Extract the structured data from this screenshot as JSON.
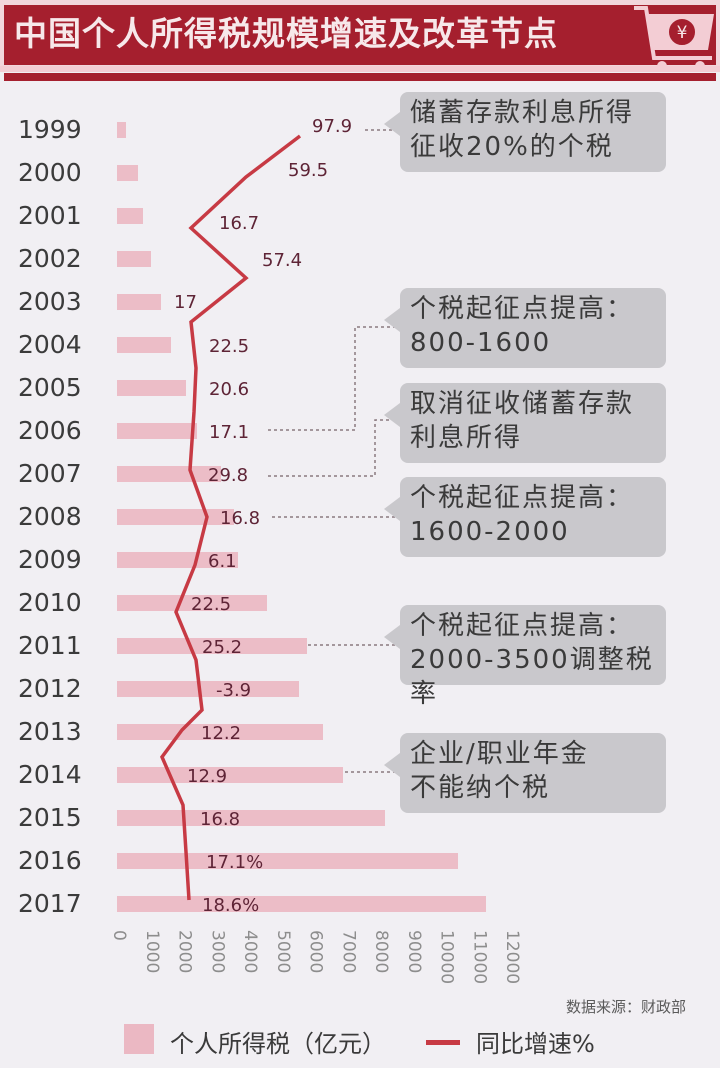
{
  "header": {
    "title": "中国个人所得税规模增速及改革节点",
    "icon": "shopping-cart-yuan-icon",
    "colors": {
      "band": "#a51f2e",
      "title_text": "#f7e8ea"
    }
  },
  "chart_data": {
    "type": "bar",
    "orientation": "horizontal",
    "title": "中国个人所得税规模增速及改革节点",
    "categories": [
      "1999",
      "2000",
      "2001",
      "2002",
      "2003",
      "2004",
      "2005",
      "2006",
      "2007",
      "2008",
      "2009",
      "2010",
      "2011",
      "2012",
      "2013",
      "2014",
      "2015",
      "2016",
      "2017"
    ],
    "series": [
      {
        "name": "个人所得税（亿元）",
        "type": "bar",
        "color": "#ebb8c3",
        "values": [
          270,
          640,
          800,
          1040,
          1350,
          1650,
          2110,
          2450,
          3190,
          3570,
          3690,
          4580,
          5800,
          5560,
          6290,
          6900,
          8180,
          10410,
          11270
        ]
      },
      {
        "name": "同比增速%",
        "type": "line",
        "color": "#c73a44",
        "values": [
          97.9,
          59.5,
          16.7,
          57.4,
          17,
          22.5,
          20.6,
          17.1,
          29.8,
          16.8,
          6.1,
          22.5,
          25.2,
          -3.9,
          12.2,
          12.9,
          16.8,
          17.1,
          18.6
        ]
      }
    ],
    "growth_labels": [
      "97.9",
      "59.5",
      "16.7",
      "57.4",
      "17",
      "22.5",
      "20.6",
      "17.1",
      "29.8",
      "16.8",
      "6.1",
      "22.5",
      "25.2",
      "-3.9",
      "12.2",
      "12.9",
      "16.8",
      "17.1%",
      "18.6%"
    ],
    "xaxis_ticks": [
      "0",
      "1000",
      "2000",
      "3000",
      "4000",
      "5000",
      "6000",
      "7000",
      "8000",
      "9000",
      "10000",
      "11000",
      "12000"
    ],
    "xlim": [
      0,
      12000
    ],
    "xlabel": "",
    "ylabel": "",
    "grid": false,
    "legend": {
      "position": "bottom",
      "entries": [
        "个人所得税（亿元）",
        "同比增速%"
      ]
    },
    "annotations": [
      {
        "year": "1999",
        "text_lines": [
          "储蓄存款利息所得",
          "征收20%的个税"
        ]
      },
      {
        "year": "2006",
        "text_lines": [
          "个税起征点提高：",
          "800-1600"
        ]
      },
      {
        "year": "2007",
        "text_lines": [
          "取消征收储蓄存款",
          "利息所得"
        ]
      },
      {
        "year": "2008",
        "text_lines": [
          "个税起征点提高：",
          "1600-2000"
        ]
      },
      {
        "year": "2011",
        "text_lines": [
          "个税起征点提高：",
          "2000-3500调整税率"
        ]
      },
      {
        "year": "2014",
        "text_lines": [
          "企业/职业年金",
          "不能纳个税"
        ]
      }
    ],
    "source": "数据来源：财政部"
  },
  "notes": [
    {
      "line1": "储蓄存款利息所得",
      "line2": "征收20%的个税"
    },
    {
      "line1": "个税起征点提高：",
      "line2": "800-1600"
    },
    {
      "line1": "取消征收储蓄存款",
      "line2": "利息所得"
    },
    {
      "line1": "个税起征点提高：",
      "line2": "1600-2000"
    },
    {
      "line1": "个税起征点提高：",
      "line2": "2000-3500调整税率"
    },
    {
      "line1": "企业/职业年金",
      "line2": "不能纳个税"
    }
  ],
  "footer": {
    "source": "数据来源：财政部",
    "legend_bar": "个人所得税（亿元）",
    "legend_line": "同比增速%"
  }
}
